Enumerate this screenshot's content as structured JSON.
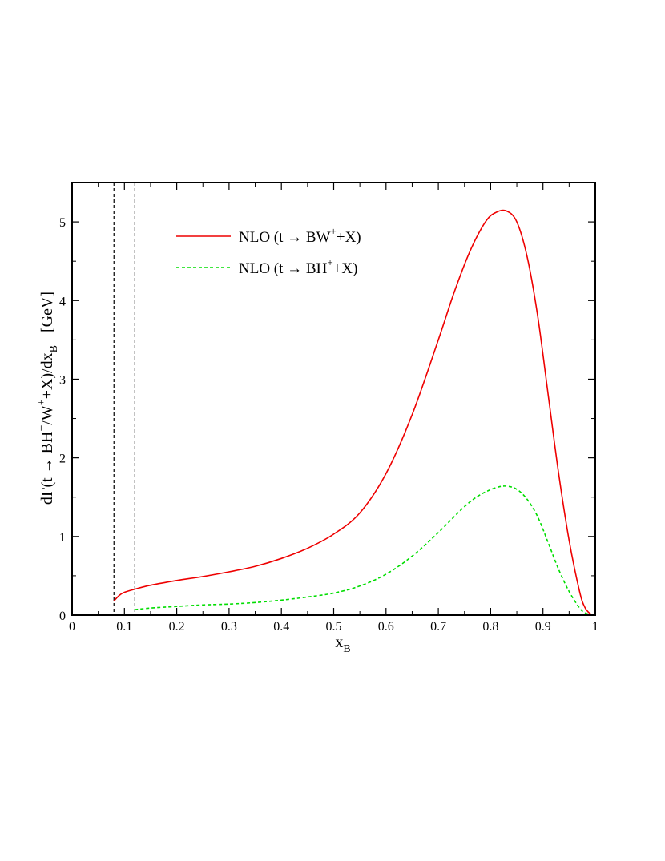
{
  "chart_data": {
    "type": "line",
    "xlabel": "x",
    "xlabel_sub": "B",
    "ylabel": {
      "part1": "dΓ(t → BH",
      "sup1": "+",
      "part2": "/W",
      "sup2": "+",
      "part3": "+X)/dx",
      "sub": "B",
      "unit": "[GeV]"
    },
    "xlim": [
      0,
      1
    ],
    "ylim": [
      0,
      5.5
    ],
    "xticks": [
      0,
      0.1,
      0.2,
      0.3,
      0.4,
      0.5,
      0.6,
      0.7,
      0.8,
      0.9,
      1
    ],
    "xtick_labels": [
      "0",
      "0.1",
      "0.2",
      "0.3",
      "0.4",
      "0.5",
      "0.6",
      "0.7",
      "0.8",
      "0.9",
      "1"
    ],
    "yticks": [
      0,
      1,
      2,
      3,
      4,
      5
    ],
    "ytick_labels": [
      "0",
      "1",
      "2",
      "3",
      "4",
      "5"
    ],
    "grid": false,
    "legend_position": "top-left",
    "vertical_lines": [
      0.08,
      0.12
    ],
    "series": [
      {
        "name": "NLO (t → BW+X)",
        "legend": {
          "before": "NLO (t → BW",
          "sup": "+",
          "after": "+X)"
        },
        "color": "#ee0000",
        "dash": "solid",
        "x": [
          0.08,
          0.09,
          0.1,
          0.12,
          0.15,
          0.2,
          0.25,
          0.3,
          0.35,
          0.4,
          0.45,
          0.5,
          0.55,
          0.6,
          0.65,
          0.7,
          0.73,
          0.76,
          0.79,
          0.81,
          0.83,
          0.85,
          0.87,
          0.89,
          0.91,
          0.93,
          0.95,
          0.97,
          0.98,
          0.99,
          1.0
        ],
        "y": [
          0.18,
          0.25,
          0.29,
          0.33,
          0.38,
          0.44,
          0.49,
          0.55,
          0.62,
          0.72,
          0.85,
          1.03,
          1.3,
          1.8,
          2.55,
          3.5,
          4.1,
          4.62,
          5.0,
          5.12,
          5.14,
          5.0,
          4.55,
          3.8,
          2.8,
          1.8,
          0.95,
          0.3,
          0.1,
          0.02,
          0.0
        ]
      },
      {
        "name": "NLO (t → BH+X)",
        "legend": {
          "before": "NLO (t → BH",
          "sup": "+",
          "after": "+X)"
        },
        "color": "#00dd00",
        "dash": "dashed",
        "x": [
          0.12,
          0.15,
          0.2,
          0.25,
          0.3,
          0.35,
          0.4,
          0.45,
          0.5,
          0.55,
          0.6,
          0.65,
          0.7,
          0.75,
          0.78,
          0.81,
          0.83,
          0.85,
          0.87,
          0.89,
          0.91,
          0.93,
          0.95,
          0.97,
          0.98,
          0.99,
          1.0
        ],
        "y": [
          0.07,
          0.09,
          0.11,
          0.13,
          0.14,
          0.16,
          0.19,
          0.23,
          0.28,
          0.37,
          0.52,
          0.75,
          1.05,
          1.38,
          1.53,
          1.62,
          1.64,
          1.6,
          1.47,
          1.25,
          0.92,
          0.58,
          0.3,
          0.09,
          0.03,
          0.01,
          0.0
        ]
      }
    ]
  }
}
